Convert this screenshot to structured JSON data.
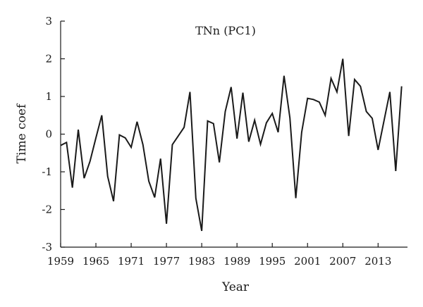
{
  "chart_data": {
    "type": "line",
    "title": "TNn (PC1)",
    "xlabel": "Year",
    "ylabel": "Time coef",
    "xlim": [
      1959,
      2018
    ],
    "ylim": [
      -3,
      3
    ],
    "x_ticks": [
      1959,
      1965,
      1971,
      1977,
      1983,
      1989,
      1995,
      2001,
      2007,
      2013
    ],
    "y_ticks": [
      3,
      2,
      1,
      0,
      -1,
      -2,
      -3
    ],
    "grid": false,
    "x": [
      1959,
      1960,
      1961,
      1962,
      1963,
      1964,
      1965,
      1966,
      1967,
      1968,
      1969,
      1970,
      1971,
      1972,
      1973,
      1974,
      1975,
      1976,
      1977,
      1978,
      1979,
      1980,
      1981,
      1982,
      1983,
      1984,
      1985,
      1986,
      1987,
      1988,
      1989,
      1990,
      1991,
      1992,
      1993,
      1994,
      1995,
      1996,
      1997,
      1998,
      1999,
      2000,
      2001,
      2002,
      2003,
      2004,
      2005,
      2006,
      2007,
      2008,
      2009,
      2010,
      2011,
      2012,
      2013,
      2014,
      2015,
      2016,
      2017
    ],
    "series": [
      {
        "values": [
          -0.3,
          -0.22,
          -1.42,
          0.12,
          -1.17,
          -0.72,
          -0.1,
          0.5,
          -1.12,
          -1.78,
          -0.02,
          -0.1,
          -0.35,
          0.33,
          -0.28,
          -1.25,
          -1.68,
          -0.65,
          -2.38,
          -0.28,
          -0.05,
          0.18,
          1.12,
          -1.7,
          -2.57,
          0.35,
          0.28,
          -0.75,
          0.6,
          1.25,
          -0.12,
          1.1,
          -0.2,
          0.37,
          -0.27,
          0.3,
          0.55,
          0.05,
          1.55,
          0.43,
          -1.7,
          0.05,
          0.95,
          0.92,
          0.85,
          0.5,
          1.48,
          1.12,
          2.0,
          -0.05,
          1.45,
          1.27,
          0.6,
          0.42,
          -0.42,
          0.35,
          1.12,
          -0.98,
          1.27
        ]
      }
    ]
  }
}
